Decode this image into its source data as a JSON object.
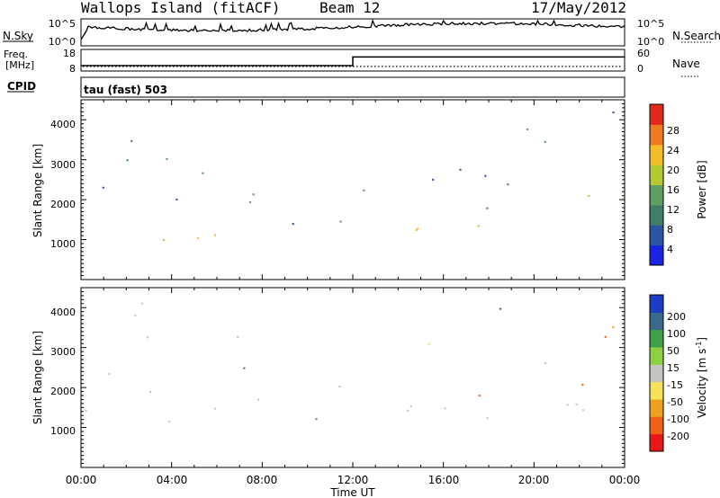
{
  "header": {
    "station": "Wallops Island (fitACF)",
    "beam": "Beam 12",
    "date": "17/May/2012"
  },
  "noise_panel": {
    "left_label": "N.Sky",
    "left_ticks": [
      "10^5",
      "10^0"
    ],
    "right_label": "N.Search",
    "right_ticks": [
      "10^5",
      "10^0"
    ]
  },
  "freq_panel": {
    "left_label_1": "Freq.",
    "left_label_2": "[MHz]",
    "left_ticks": [
      "18",
      "8"
    ],
    "right_label": "Nave",
    "right_ticks": [
      "60",
      "0"
    ],
    "freq_mhz": [
      {
        "t": 0,
        "v": 10.5
      },
      {
        "t": 12,
        "v": 10.5
      },
      {
        "t": 12,
        "v": 14.5
      },
      {
        "t": 24,
        "v": 14.5
      }
    ]
  },
  "cpid": {
    "label": "CPID",
    "value": "tau (fast) 503"
  },
  "chart_data": [
    {
      "type": "heatmap",
      "name": "power",
      "ylabel": "Slant Range [km]",
      "y_ticks": [
        "1000",
        "2000",
        "3000",
        "4000"
      ],
      "ylim": [
        0,
        4500
      ],
      "colorbar_label": "Power [dB]",
      "colorbar_ticks": [
        "4",
        "8",
        "12",
        "16",
        "20",
        "24",
        "28"
      ],
      "colorbar_range": [
        0,
        30
      ],
      "colorbar_colors": [
        "#1a22e6",
        "#2b56a4",
        "#3f7f6a",
        "#5ea061",
        "#b5c832",
        "#f2bc2a",
        "#f07a22",
        "#e22a1c"
      ]
    },
    {
      "type": "heatmap",
      "name": "velocity",
      "ylabel": "Slant Range [km]",
      "y_ticks": [
        "1000",
        "2000",
        "3000",
        "4000"
      ],
      "ylim": [
        0,
        4500
      ],
      "colorbar_label": "Velocity [m s",
      "colorbar_label_sup": "-1",
      "colorbar_label_end": "]",
      "colorbar_ticks": [
        "200",
        "100",
        "50",
        "15",
        "-15",
        "-50",
        "-100",
        "-200"
      ],
      "colorbar_colors": [
        "#1c3ec6",
        "#3a6a8c",
        "#3fa04a",
        "#8ed044",
        "#c6c6c0",
        "#f7e05a",
        "#f0a020",
        "#f06018",
        "#e81818"
      ]
    }
  ],
  "x_axis": {
    "label": "Time UT",
    "ticks": [
      "00:00",
      "04:00",
      "08:00",
      "12:00",
      "16:00",
      "20:00",
      "00:00"
    ],
    "range_hours": [
      0,
      24
    ]
  }
}
